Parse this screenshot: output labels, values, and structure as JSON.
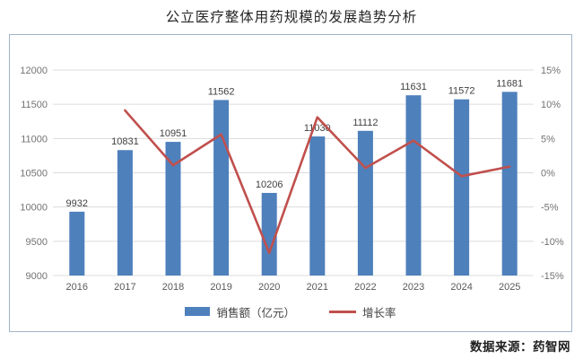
{
  "title": "公立医疗整体用药规模的发展趋势分析",
  "source_note": "数据来源：药智网",
  "legend": {
    "sales_label": "销售额（亿元）",
    "growth_label": "增长率"
  },
  "colors": {
    "bar": "#4e80bc",
    "line": "#c0504d",
    "box_border": "#a0b4c8",
    "grid": "#dcdcdc",
    "left_axis_text": "#737373",
    "right_axis_text": "#737373",
    "category_text": "#595959",
    "data_label_text": "#3f3f3f"
  },
  "chart_data": {
    "type": "bar",
    "subtype": "combo-bar-line-dual-axis",
    "title": "公立医疗整体用药规模的发展趋势分析",
    "categories": [
      "2016",
      "2017",
      "2018",
      "2019",
      "2020",
      "2021",
      "2022",
      "2023",
      "2024",
      "2025"
    ],
    "series": [
      {
        "name": "销售额（亿元）",
        "type": "bar",
        "axis": "left",
        "data_labels": true,
        "values": [
          9932,
          10831,
          10951,
          11562,
          10206,
          11030,
          11112,
          11631,
          11572,
          11681
        ]
      },
      {
        "name": "增长率",
        "type": "line",
        "axis": "right",
        "unit": "%",
        "values": [
          null,
          9.1,
          1.1,
          5.6,
          -11.7,
          8.1,
          0.7,
          4.7,
          -0.5,
          0.9
        ]
      }
    ],
    "left_axis": {
      "min": 9000,
      "max": 12000,
      "step": 500,
      "tick_labels": [
        "9000",
        "9500",
        "10000",
        "10500",
        "11000",
        "11500",
        "12000"
      ]
    },
    "right_axis": {
      "min": -15,
      "max": 15,
      "step": 5,
      "tick_labels": [
        "-15%",
        "-10%",
        "-5%",
        "0%",
        "5%",
        "10%",
        "15%"
      ]
    },
    "grid": "horizontal",
    "legend_position": "bottom"
  }
}
